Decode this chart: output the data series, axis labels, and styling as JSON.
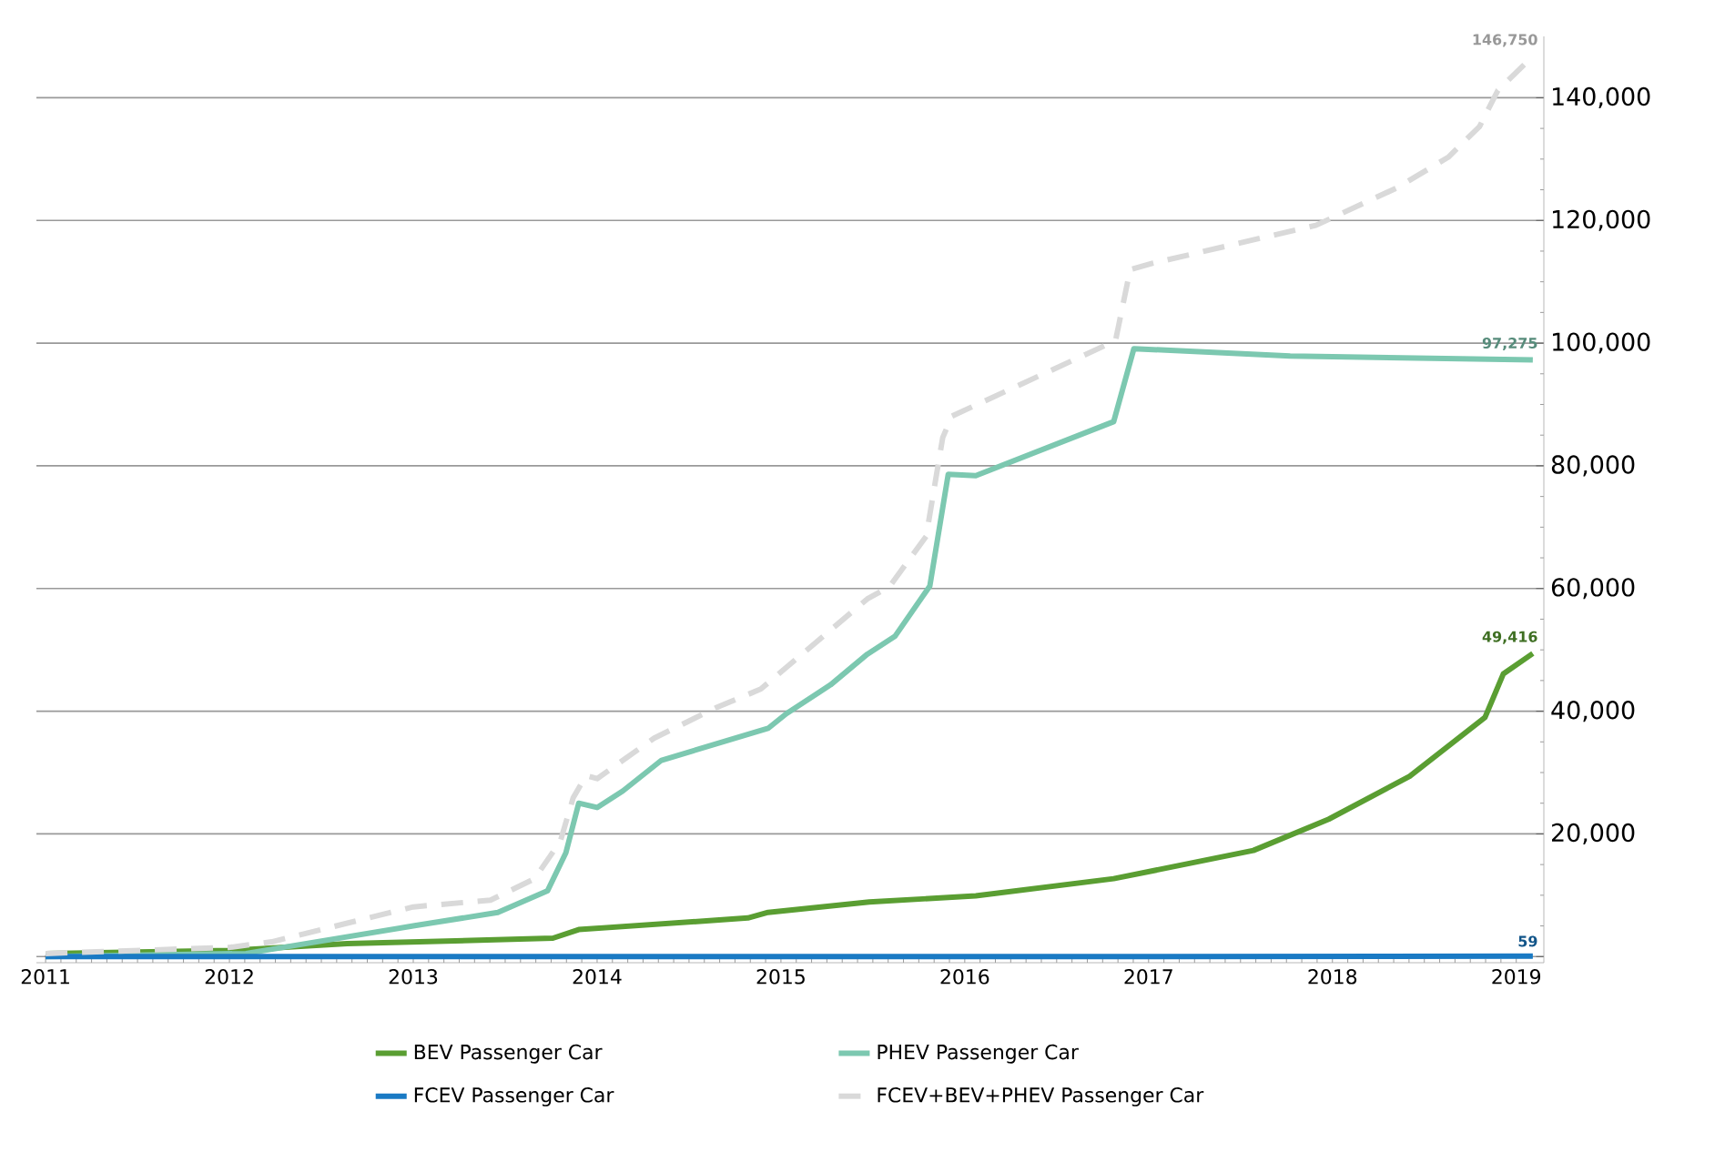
{
  "chart_data": {
    "type": "line",
    "xlim": [
      2010.95,
      2019.15
    ],
    "ylim": [
      -1000,
      150000
    ],
    "xticks": [
      2011,
      2012,
      2013,
      2014,
      2015,
      2016,
      2017,
      2018,
      2019
    ],
    "yticks": [
      {
        "value": 0,
        "label": null
      },
      {
        "value": 20000,
        "label": "20,000"
      },
      {
        "value": 40000,
        "label": "40,000"
      },
      {
        "value": 60000,
        "label": "60,000"
      },
      {
        "value": 80000,
        "label": "80,000"
      },
      {
        "value": 100000,
        "label": "100,000"
      },
      {
        "value": 120000,
        "label": "120,000"
      },
      {
        "value": 140000,
        "label": "140,000"
      }
    ],
    "grid": "y",
    "legend": "bottom",
    "marker": "none",
    "series": [
      {
        "name": "BEV Passenger Car",
        "color": "#5a9e32",
        "line_style": "solid",
        "x": [
          2011,
          2012,
          2012.64,
          2013.76,
          2013.9,
          2014.82,
          2014.93,
          2015.48,
          2016.06,
          2016.81,
          2017.57,
          2017.98,
          2018.42,
          2018.83,
          2018.93,
          2019.09
        ],
        "values": [
          500,
          1000,
          2100,
          3000,
          4400,
          6300,
          7200,
          8900,
          9900,
          12700,
          17300,
          22400,
          29400,
          39000,
          46100,
          49416
        ],
        "value_labels": [
          null,
          null,
          null,
          null,
          null,
          null,
          null,
          null,
          null,
          null,
          null,
          null,
          null,
          null,
          null,
          "49,416"
        ]
      },
      {
        "name": "PHEV Passenger Car",
        "color": "#7cc8b0",
        "line_style": "solid",
        "x": [
          2011,
          2012.09,
          2013.0,
          2013.46,
          2013.73,
          2013.83,
          2013.9,
          2014.0,
          2014.14,
          2014.35,
          2014.93,
          2015.03,
          2015.27,
          2015.47,
          2015.62,
          2015.81,
          2015.91,
          2016.06,
          2016.81,
          2016.92,
          2017.77,
          2019.09
        ],
        "values": [
          0,
          500,
          5000,
          7200,
          10700,
          16900,
          25000,
          24300,
          27000,
          32000,
          37200,
          39600,
          44300,
          49300,
          52200,
          60400,
          78600,
          78400,
          87200,
          99100,
          97900,
          97275
        ],
        "value_labels": [
          null,
          null,
          null,
          null,
          null,
          null,
          null,
          null,
          null,
          null,
          null,
          null,
          null,
          null,
          null,
          null,
          null,
          null,
          null,
          null,
          null,
          "97,275"
        ]
      },
      {
        "name": "FCEV Passenger Car",
        "color": "#1a7ac4",
        "line_style": "solid",
        "x": [
          2011,
          2015,
          2017,
          2019.09
        ],
        "values": [
          0,
          0,
          0,
          59
        ],
        "value_labels": [
          null,
          null,
          null,
          "59"
        ]
      },
      {
        "name": "FCEV+BEV+PHEV Passenger Car",
        "color": "#d9d9d9",
        "line_style": "dashed",
        "x": [
          2011,
          2012,
          2012.23,
          2013.0,
          2013.42,
          2013.66,
          2013.8,
          2013.87,
          2013.94,
          2014.0,
          2014.31,
          2014.65,
          2014.89,
          2015.47,
          2015.59,
          2015.79,
          2015.88,
          2015.93,
          2016.82,
          2016.9,
          2017.02,
          2017.91,
          2018.35,
          2018.63,
          2018.8,
          2018.9,
          2019.09
        ],
        "values": [
          500,
          1500,
          2400,
          8100,
          9200,
          12700,
          18800,
          25900,
          29500,
          29000,
          35600,
          40600,
          43600,
          58300,
          60300,
          68500,
          84600,
          88100,
          100400,
          112000,
          113000,
          119200,
          125300,
          130300,
          135300,
          141200,
          146750
        ],
        "value_labels": [
          null,
          null,
          null,
          null,
          null,
          null,
          null,
          null,
          null,
          null,
          null,
          null,
          null,
          null,
          null,
          null,
          null,
          null,
          null,
          null,
          null,
          null,
          null,
          null,
          null,
          null,
          "146,750"
        ]
      }
    ]
  }
}
